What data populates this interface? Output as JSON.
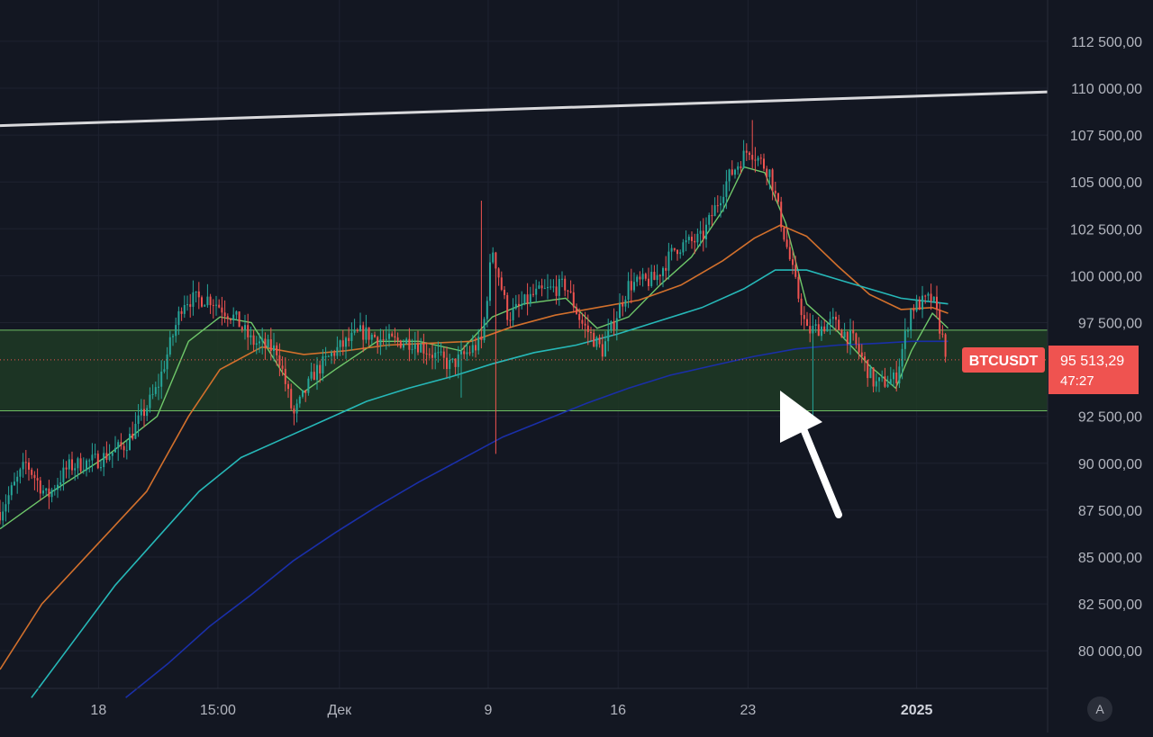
{
  "symbol": "BTCUSDT",
  "last_price_label": "95 513,29",
  "countdown": "47:27",
  "auto_scale_button": "A",
  "colors": {
    "background": "#131722",
    "grid": "#1e2230",
    "up": "#26a69a",
    "down": "#ef5350",
    "zone_fill": "#1e3a25",
    "zone_border": "#6fbf63",
    "trendline": "#d9d9dc",
    "ema_fast": "#6fc86a",
    "ema_mid": "#d2702c",
    "ema_slow": "#26b8b8",
    "ema_longest": "#1a2fa8",
    "axis_text": "#b2b5be",
    "arrow": "#ffffff"
  },
  "chart_data": {
    "type": "candlestick",
    "y_axis_labels": [
      "112 500,00",
      "110 000,00",
      "107 500,00",
      "105 000,00",
      "102 500,00",
      "100 000,00",
      "97 500,00",
      "92 500,00",
      "90 000,00",
      "87 500,00",
      "85 000,00",
      "82 500,00",
      "80 000,00"
    ],
    "x_axis_labels": [
      "18",
      "15:00",
      "Дек",
      "9",
      "16",
      "23",
      "2025"
    ],
    "price_range": [
      77500,
      115000
    ],
    "last_price": 95513.29,
    "support_zone": [
      92800,
      97100
    ],
    "trendline": {
      "start_price": 108000,
      "end_price": 109800
    },
    "candle_path": [
      {
        "t": 0,
        "p": 87400
      },
      {
        "t": 0.025,
        "p": 90000
      },
      {
        "t": 0.045,
        "p": 88200
      },
      {
        "t": 0.065,
        "p": 89800
      },
      {
        "t": 0.095,
        "p": 90200
      },
      {
        "t": 0.12,
        "p": 91000
      },
      {
        "t": 0.15,
        "p": 94000
      },
      {
        "t": 0.175,
        "p": 98700
      },
      {
        "t": 0.2,
        "p": 98800
      },
      {
        "t": 0.225,
        "p": 97700
      },
      {
        "t": 0.24,
        "p": 96500
      },
      {
        "t": 0.265,
        "p": 96000
      },
      {
        "t": 0.28,
        "p": 92500
      },
      {
        "t": 0.3,
        "p": 94800
      },
      {
        "t": 0.32,
        "p": 96000
      },
      {
        "t": 0.345,
        "p": 97000
      },
      {
        "t": 0.37,
        "p": 96500
      },
      {
        "t": 0.395,
        "p": 96500
      },
      {
        "t": 0.43,
        "p": 95200
      },
      {
        "t": 0.46,
        "p": 96500
      },
      {
        "t": 0.47,
        "p": 101500
      },
      {
        "t": 0.485,
        "p": 97800
      },
      {
        "t": 0.51,
        "p": 99000
      },
      {
        "t": 0.54,
        "p": 99500
      },
      {
        "t": 0.555,
        "p": 97500
      },
      {
        "t": 0.575,
        "p": 96000
      },
      {
        "t": 0.6,
        "p": 99500
      },
      {
        "t": 0.625,
        "p": 99800
      },
      {
        "t": 0.645,
        "p": 101500
      },
      {
        "t": 0.67,
        "p": 102000
      },
      {
        "t": 0.695,
        "p": 105200
      },
      {
        "t": 0.715,
        "p": 106800
      },
      {
        "t": 0.735,
        "p": 105500
      },
      {
        "t": 0.75,
        "p": 101800
      },
      {
        "t": 0.77,
        "p": 97000
      },
      {
        "t": 0.795,
        "p": 97500
      },
      {
        "t": 0.815,
        "p": 96500
      },
      {
        "t": 0.835,
        "p": 94200
      },
      {
        "t": 0.855,
        "p": 94500
      },
      {
        "t": 0.87,
        "p": 98300
      },
      {
        "t": 0.89,
        "p": 98800
      },
      {
        "t": 0.905,
        "p": 95500
      }
    ],
    "moving_averages": [
      {
        "color_key": "ema_fast",
        "points": [
          [
            0,
            86500
          ],
          [
            0.05,
            88500
          ],
          [
            0.1,
            90300
          ],
          [
            0.15,
            92500
          ],
          [
            0.18,
            96500
          ],
          [
            0.21,
            97800
          ],
          [
            0.24,
            97500
          ],
          [
            0.27,
            94800
          ],
          [
            0.29,
            93800
          ],
          [
            0.32,
            95000
          ],
          [
            0.36,
            96500
          ],
          [
            0.4,
            96500
          ],
          [
            0.44,
            96000
          ],
          [
            0.47,
            97800
          ],
          [
            0.5,
            98500
          ],
          [
            0.54,
            98800
          ],
          [
            0.57,
            97200
          ],
          [
            0.6,
            97800
          ],
          [
            0.63,
            99500
          ],
          [
            0.66,
            101000
          ],
          [
            0.69,
            103500
          ],
          [
            0.71,
            105800
          ],
          [
            0.73,
            105500
          ],
          [
            0.75,
            102800
          ],
          [
            0.77,
            98500
          ],
          [
            0.8,
            97000
          ],
          [
            0.83,
            95200
          ],
          [
            0.855,
            94000
          ],
          [
            0.87,
            96000
          ],
          [
            0.89,
            98000
          ],
          [
            0.905,
            97200
          ]
        ]
      },
      {
        "color_key": "ema_mid",
        "points": [
          [
            0,
            79000
          ],
          [
            0.04,
            82500
          ],
          [
            0.09,
            85500
          ],
          [
            0.14,
            88500
          ],
          [
            0.18,
            92500
          ],
          [
            0.21,
            95000
          ],
          [
            0.25,
            96200
          ],
          [
            0.29,
            95800
          ],
          [
            0.33,
            96000
          ],
          [
            0.37,
            96300
          ],
          [
            0.41,
            96400
          ],
          [
            0.45,
            96500
          ],
          [
            0.49,
            97300
          ],
          [
            0.53,
            97900
          ],
          [
            0.57,
            98300
          ],
          [
            0.61,
            98700
          ],
          [
            0.65,
            99500
          ],
          [
            0.69,
            100800
          ],
          [
            0.72,
            102000
          ],
          [
            0.745,
            102700
          ],
          [
            0.77,
            102100
          ],
          [
            0.8,
            100500
          ],
          [
            0.83,
            99000
          ],
          [
            0.86,
            98200
          ],
          [
            0.89,
            98300
          ],
          [
            0.905,
            98000
          ]
        ]
      },
      {
        "color_key": "ema_slow",
        "points": [
          [
            0.03,
            77500
          ],
          [
            0.07,
            80500
          ],
          [
            0.11,
            83500
          ],
          [
            0.15,
            86000
          ],
          [
            0.19,
            88500
          ],
          [
            0.23,
            90300
          ],
          [
            0.27,
            91300
          ],
          [
            0.31,
            92300
          ],
          [
            0.35,
            93300
          ],
          [
            0.39,
            94000
          ],
          [
            0.43,
            94600
          ],
          [
            0.47,
            95300
          ],
          [
            0.51,
            95900
          ],
          [
            0.55,
            96300
          ],
          [
            0.59,
            96900
          ],
          [
            0.63,
            97600
          ],
          [
            0.67,
            98300
          ],
          [
            0.71,
            99300
          ],
          [
            0.74,
            100300
          ],
          [
            0.77,
            100300
          ],
          [
            0.8,
            99800
          ],
          [
            0.83,
            99300
          ],
          [
            0.86,
            98800
          ],
          [
            0.89,
            98600
          ],
          [
            0.905,
            98500
          ]
        ]
      },
      {
        "color_key": "ema_longest",
        "points": [
          [
            0.12,
            77500
          ],
          [
            0.16,
            79300
          ],
          [
            0.2,
            81300
          ],
          [
            0.24,
            83000
          ],
          [
            0.28,
            84800
          ],
          [
            0.32,
            86300
          ],
          [
            0.36,
            87700
          ],
          [
            0.4,
            89000
          ],
          [
            0.44,
            90200
          ],
          [
            0.48,
            91400
          ],
          [
            0.52,
            92300
          ],
          [
            0.56,
            93200
          ],
          [
            0.6,
            94000
          ],
          [
            0.64,
            94700
          ],
          [
            0.68,
            95200
          ],
          [
            0.72,
            95700
          ],
          [
            0.76,
            96100
          ],
          [
            0.8,
            96300
          ],
          [
            0.84,
            96400
          ],
          [
            0.87,
            96500
          ],
          [
            0.905,
            96500
          ]
        ]
      }
    ]
  }
}
